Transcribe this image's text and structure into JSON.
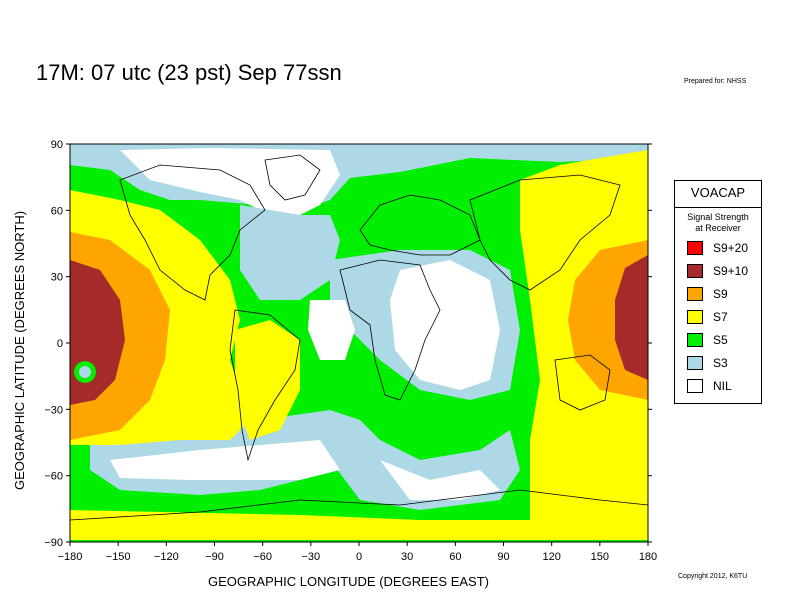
{
  "title": "17M:  07 utc (23 pst) Sep 77ssn",
  "prepared_for": "Prepared for: NHSS",
  "copyright": "Copyright 2012, K6TU",
  "x_axis": {
    "label": "GEOGRAPHIC LONGITUDE (DEGREES EAST)",
    "ticks": [
      "−180",
      "−150",
      "−120",
      "−90",
      "−60",
      "−30",
      "0",
      "30",
      "60",
      "90",
      "120",
      "150",
      "180"
    ],
    "range": [
      -180,
      180
    ]
  },
  "y_axis": {
    "label": "GEOGRAPHIC LATITUDE (DEGREES NORTH)",
    "ticks": [
      "90",
      "60",
      "30",
      "0",
      "−30",
      "−60",
      "−90"
    ],
    "range": [
      -90,
      90
    ]
  },
  "legend": {
    "title": "VOACAP",
    "subtitle_line1": "Signal Strength",
    "subtitle_line2": "at Receiver",
    "items": [
      {
        "label": "S9+20",
        "color": "#ff0000"
      },
      {
        "label": "S9+10",
        "color": "#a52a2a"
      },
      {
        "label": "S9",
        "color": "#ffa500"
      },
      {
        "label": "S7",
        "color": "#ffff00"
      },
      {
        "label": "S5",
        "color": "#00ee00"
      },
      {
        "label": "S3",
        "color": "#add8e6"
      },
      {
        "label": "NIL",
        "color": "#ffffff"
      }
    ]
  },
  "colors": {
    "s9_10": "#a52a2a",
    "s9": "#ffa500",
    "s7": "#ffff00",
    "s5": "#00ee00",
    "s3": "#add8e6",
    "nil": "#ffffff"
  }
}
